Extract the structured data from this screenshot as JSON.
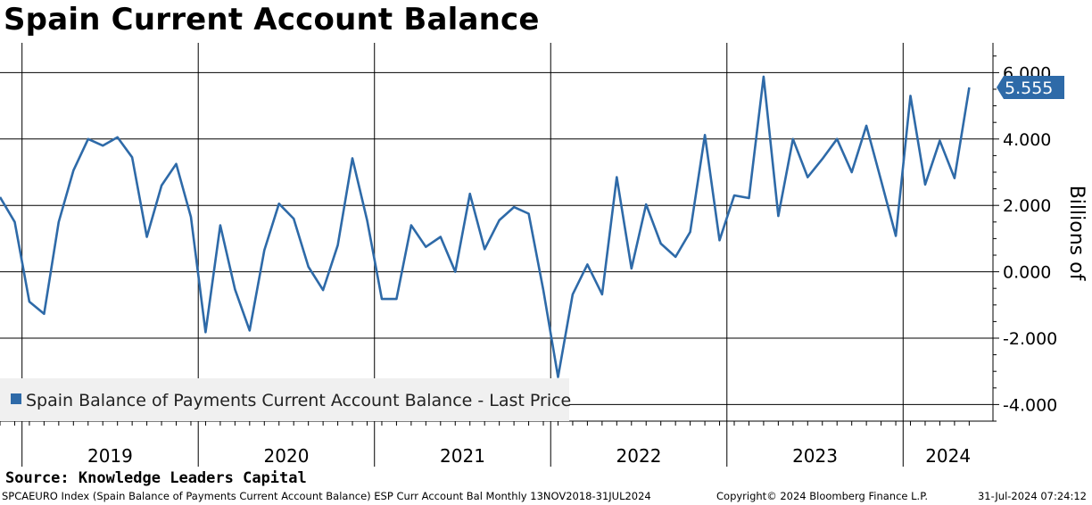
{
  "title": "Spain Current Account Balance",
  "source": "Source: Knowledge Leaders Capital",
  "footer": {
    "left": "SPCAEURO Index (Spain Balance of Payments Current Account Balance) ESP Curr Account Bal  Monthly 13NOV2018-31JUL2024",
    "middle": "Copyright© 2024 Bloomberg Finance L.P.",
    "right": "31-Jul-2024 07:24:12"
  },
  "colors": {
    "series": "#2e6aa8",
    "grid": "#000000",
    "legend_bg": "#f0f0f0"
  },
  "chart_data": {
    "type": "line",
    "title": "Spain Current Account Balance",
    "ylabel": "Billions of",
    "ylim": [
      -4.5,
      6.8
    ],
    "y_ticks": [
      -4.0,
      -2.0,
      0.0,
      2.0,
      4.0,
      6.0
    ],
    "y_tick_labels": [
      "-4.000",
      "-2.000",
      "0.000",
      "2.000",
      "4.000",
      "6.000"
    ],
    "x_labels": [
      "2019",
      "2020",
      "2021",
      "2022",
      "2023",
      "2024"
    ],
    "grid": true,
    "legend": "bottom-left",
    "last_value_label": "5.555",
    "series": [
      {
        "name": "Spain Balance of Payments Current Account Balance - Last Price",
        "x": [
          "2018-11",
          "2018-12",
          "2019-01",
          "2019-02",
          "2019-03",
          "2019-04",
          "2019-05",
          "2019-06",
          "2019-07",
          "2019-08",
          "2019-09",
          "2019-10",
          "2019-11",
          "2019-12",
          "2020-01",
          "2020-02",
          "2020-03",
          "2020-04",
          "2020-05",
          "2020-06",
          "2020-07",
          "2020-08",
          "2020-09",
          "2020-10",
          "2020-11",
          "2020-12",
          "2021-01",
          "2021-02",
          "2021-03",
          "2021-04",
          "2021-05",
          "2021-06",
          "2021-07",
          "2021-08",
          "2021-09",
          "2021-10",
          "2021-11",
          "2021-12",
          "2022-01",
          "2022-02",
          "2022-03",
          "2022-04",
          "2022-05",
          "2022-06",
          "2022-07",
          "2022-08",
          "2022-09",
          "2022-10",
          "2022-11",
          "2022-12",
          "2023-01",
          "2023-02",
          "2023-03",
          "2023-04",
          "2023-05",
          "2023-06",
          "2023-07",
          "2023-08",
          "2023-09",
          "2023-10",
          "2023-11",
          "2023-12",
          "2024-01",
          "2024-02",
          "2024-03",
          "2024-04",
          "2024-05"
        ],
        "values": [
          2.25,
          1.5,
          -0.9,
          -1.27,
          1.5,
          3.05,
          4.0,
          3.8,
          4.05,
          3.45,
          1.05,
          2.6,
          3.25,
          1.65,
          -1.82,
          1.4,
          -0.53,
          -1.77,
          0.65,
          2.05,
          1.6,
          0.15,
          -0.55,
          0.8,
          3.42,
          1.55,
          -0.82,
          -0.82,
          1.4,
          0.75,
          1.05,
          0.0,
          2.35,
          0.68,
          1.55,
          1.95,
          1.75,
          -0.55,
          -3.17,
          -0.68,
          0.22,
          -0.68,
          2.85,
          0.1,
          2.03,
          0.85,
          0.45,
          1.2,
          4.12,
          0.95,
          2.3,
          2.22,
          5.88,
          1.68,
          4.0,
          2.85,
          3.4,
          4.0,
          3.0,
          4.4,
          2.75,
          1.08,
          5.3,
          2.63,
          3.95,
          2.82,
          5.555
        ]
      }
    ]
  }
}
